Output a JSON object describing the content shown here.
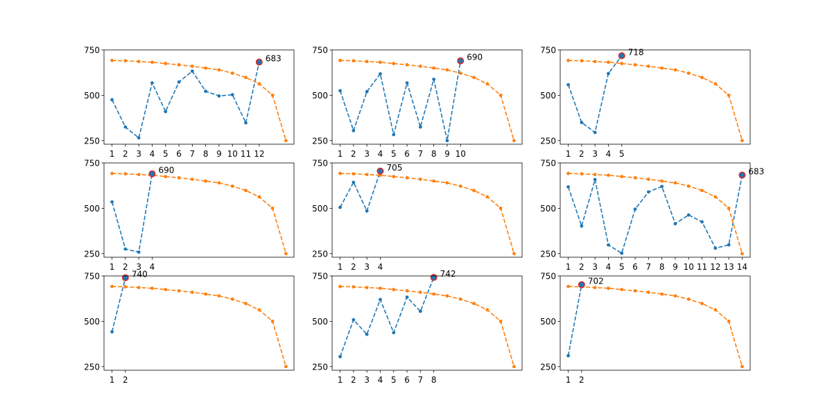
{
  "colors": {
    "series1": "#1f77b4",
    "series2": "#ff7f0e",
    "highlight_edge": "#d62728"
  },
  "chart_data": [
    {
      "type": "line",
      "ylim": [
        230,
        750
      ],
      "yticks": [
        250,
        500,
        750
      ],
      "x_ticks": [
        1,
        2,
        3,
        4,
        5,
        6,
        7,
        8,
        9,
        10,
        11,
        12
      ],
      "series": [
        {
          "x": [
            1,
            2,
            3,
            4,
            5,
            6,
            7,
            8,
            9,
            10,
            11,
            12
          ],
          "y": [
            475,
            325,
            265,
            568,
            410,
            573,
            633,
            522,
            496,
            503,
            348,
            683
          ]
        },
        {
          "x": [
            1,
            2,
            3,
            4,
            5,
            6,
            7,
            8,
            9,
            10,
            11,
            12,
            13,
            14
          ],
          "y": [
            692,
            690,
            686,
            682,
            675,
            668,
            660,
            650,
            640,
            622,
            598,
            563,
            500,
            250
          ]
        }
      ],
      "highlight": {
        "x": 12,
        "y": 683,
        "label": "683"
      }
    },
    {
      "type": "line",
      "ylim": [
        230,
        750
      ],
      "yticks": [
        250,
        500,
        750
      ],
      "x_ticks": [
        1,
        2,
        3,
        4,
        5,
        6,
        7,
        8,
        9,
        10
      ],
      "series": [
        {
          "x": [
            1,
            2,
            3,
            4,
            5,
            6,
            7,
            8,
            9,
            10
          ],
          "y": [
            525,
            305,
            520,
            618,
            283,
            568,
            325,
            588,
            250,
            690
          ]
        },
        {
          "x": [
            1,
            2,
            3,
            4,
            5,
            6,
            7,
            8,
            9,
            10,
            11,
            12,
            13,
            14
          ],
          "y": [
            692,
            690,
            686,
            682,
            675,
            668,
            660,
            650,
            640,
            622,
            598,
            563,
            500,
            250
          ]
        }
      ],
      "highlight": {
        "x": 10,
        "y": 690,
        "label": "690"
      }
    },
    {
      "type": "line",
      "ylim": [
        230,
        750
      ],
      "yticks": [
        250,
        500,
        750
      ],
      "x_ticks": [
        1,
        2,
        3,
        4,
        5
      ],
      "series": [
        {
          "x": [
            1,
            2,
            3,
            4,
            5
          ],
          "y": [
            558,
            350,
            295,
            620,
            718
          ]
        },
        {
          "x": [
            1,
            2,
            3,
            4,
            5,
            6,
            7,
            8,
            9,
            10,
            11,
            12,
            13,
            14
          ],
          "y": [
            692,
            690,
            686,
            682,
            675,
            668,
            660,
            650,
            640,
            622,
            598,
            563,
            500,
            250
          ]
        }
      ],
      "highlight": {
        "x": 5,
        "y": 718,
        "label": "718"
      }
    },
    {
      "type": "line",
      "ylim": [
        230,
        750
      ],
      "yticks": [
        250,
        500,
        750
      ],
      "x_ticks": [
        1,
        2,
        3,
        4
      ],
      "series": [
        {
          "x": [
            1,
            2,
            3,
            4
          ],
          "y": [
            535,
            275,
            258,
            690
          ]
        },
        {
          "x": [
            1,
            2,
            3,
            4,
            5,
            6,
            7,
            8,
            9,
            10,
            11,
            12,
            13,
            14
          ],
          "y": [
            692,
            690,
            686,
            682,
            675,
            668,
            660,
            650,
            640,
            622,
            598,
            563,
            500,
            250
          ]
        }
      ],
      "highlight": {
        "x": 4,
        "y": 690,
        "label": "690"
      }
    },
    {
      "type": "line",
      "ylim": [
        230,
        750
      ],
      "yticks": [
        250,
        500,
        750
      ],
      "x_ticks": [
        1,
        2,
        3,
        4
      ],
      "series": [
        {
          "x": [
            1,
            2,
            3,
            4
          ],
          "y": [
            505,
            643,
            485,
            705
          ]
        },
        {
          "x": [
            1,
            2,
            3,
            4,
            5,
            6,
            7,
            8,
            9,
            10,
            11,
            12,
            13,
            14
          ],
          "y": [
            692,
            690,
            686,
            682,
            675,
            668,
            660,
            650,
            640,
            622,
            598,
            563,
            500,
            250
          ]
        }
      ],
      "highlight": {
        "x": 4,
        "y": 705,
        "label": "705"
      }
    },
    {
      "type": "line",
      "ylim": [
        230,
        750
      ],
      "yticks": [
        250,
        500,
        750
      ],
      "x_ticks": [
        1,
        2,
        3,
        4,
        5,
        6,
        7,
        8,
        9,
        10,
        11,
        12,
        13,
        14
      ],
      "series": [
        {
          "x": [
            1,
            2,
            3,
            4,
            5,
            6,
            7,
            8,
            9,
            10,
            11,
            12,
            13,
            14
          ],
          "y": [
            618,
            402,
            658,
            298,
            252,
            495,
            590,
            620,
            415,
            463,
            425,
            280,
            298,
            683
          ]
        },
        {
          "x": [
            1,
            2,
            3,
            4,
            5,
            6,
            7,
            8,
            9,
            10,
            11,
            12,
            13,
            14
          ],
          "y": [
            692,
            690,
            686,
            682,
            675,
            668,
            660,
            650,
            640,
            622,
            598,
            563,
            500,
            250
          ]
        }
      ],
      "highlight": {
        "x": 14,
        "y": 683,
        "label": "683"
      }
    },
    {
      "type": "line",
      "ylim": [
        230,
        750
      ],
      "yticks": [
        250,
        500,
        750
      ],
      "x_ticks": [
        1,
        2
      ],
      "series": [
        {
          "x": [
            1,
            2
          ],
          "y": [
            442,
            740
          ]
        },
        {
          "x": [
            1,
            2,
            3,
            4,
            5,
            6,
            7,
            8,
            9,
            10,
            11,
            12,
            13,
            14
          ],
          "y": [
            692,
            690,
            686,
            682,
            675,
            668,
            660,
            650,
            640,
            622,
            598,
            563,
            500,
            250
          ]
        }
      ],
      "highlight": {
        "x": 2,
        "y": 740,
        "label": "740"
      }
    },
    {
      "type": "line",
      "ylim": [
        230,
        750
      ],
      "yticks": [
        250,
        500,
        750
      ],
      "x_ticks": [
        1,
        2,
        3,
        4,
        5,
        6,
        7,
        8
      ],
      "series": [
        {
          "x": [
            1,
            2,
            3,
            4,
            5,
            6,
            7,
            8
          ],
          "y": [
            305,
            508,
            428,
            620,
            437,
            633,
            555,
            742
          ]
        },
        {
          "x": [
            1,
            2,
            3,
            4,
            5,
            6,
            7,
            8,
            9,
            10,
            11,
            12,
            13,
            14
          ],
          "y": [
            692,
            690,
            686,
            682,
            675,
            668,
            660,
            650,
            640,
            622,
            598,
            563,
            500,
            250
          ]
        }
      ],
      "highlight": {
        "x": 8,
        "y": 742,
        "label": "742"
      }
    },
    {
      "type": "line",
      "ylim": [
        230,
        750
      ],
      "yticks": [
        250,
        500,
        750
      ],
      "x_ticks": [
        1,
        2
      ],
      "series": [
        {
          "x": [
            1,
            2
          ],
          "y": [
            310,
            702
          ]
        },
        {
          "x": [
            1,
            2,
            3,
            4,
            5,
            6,
            7,
            8,
            9,
            10,
            11,
            12,
            13,
            14
          ],
          "y": [
            692,
            690,
            686,
            682,
            675,
            668,
            660,
            650,
            640,
            622,
            598,
            563,
            500,
            250
          ]
        }
      ],
      "highlight": {
        "x": 2,
        "y": 702,
        "label": "702"
      }
    }
  ]
}
